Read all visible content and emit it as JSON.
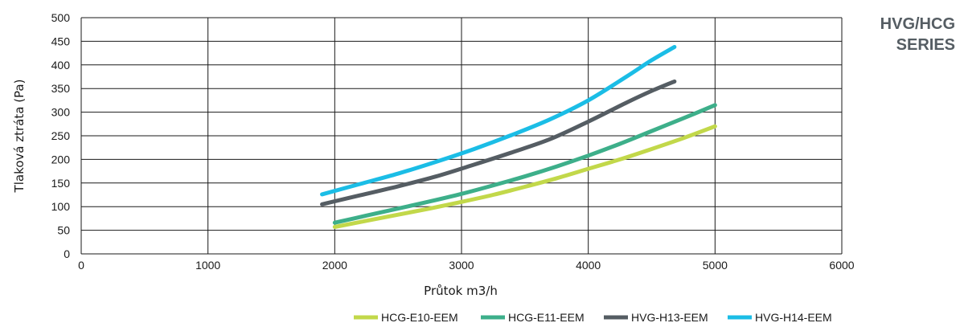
{
  "header": {
    "title_line1": "HVG/HCG",
    "title_line2": "SERIES"
  },
  "chart_data": {
    "type": "line",
    "title": "",
    "xlabel": "Průtok m3/h",
    "ylabel": "Tlaková ztráta (Pa)",
    "xlim": [
      0,
      6000
    ],
    "ylim": [
      0,
      500
    ],
    "x_ticks": [
      0,
      1000,
      2000,
      3000,
      4000,
      5000,
      6000
    ],
    "y_ticks": [
      0,
      50,
      100,
      150,
      200,
      250,
      300,
      350,
      400,
      450,
      500
    ],
    "grid": true,
    "legend_position": "bottom",
    "series": [
      {
        "name": "HCG-E10-EEM",
        "color": "#c2d84a",
        "x": [
          2000,
          2250,
          2500,
          2750,
          3000,
          3250,
          3500,
          3750,
          4000,
          4250,
          4500,
          4750,
          5000
        ],
        "y": [
          57,
          70,
          83,
          96,
          110,
          125,
          142,
          160,
          180,
          200,
          222,
          245,
          270
        ]
      },
      {
        "name": "HCG-E11-EEM",
        "color": "#3daf8a",
        "x": [
          2000,
          2250,
          2500,
          2750,
          3000,
          3250,
          3500,
          3750,
          4000,
          4250,
          4500,
          4750,
          5000
        ],
        "y": [
          66,
          81,
          96,
          111,
          127,
          145,
          164,
          185,
          208,
          233,
          260,
          287,
          315
        ]
      },
      {
        "name": "HVG-H13-EEM",
        "color": "#555d63",
        "x": [
          1900,
          2200,
          2500,
          2800,
          3100,
          3400,
          3700,
          4000,
          4300,
          4500,
          4680
        ],
        "y": [
          105,
          124,
          143,
          164,
          189,
          215,
          243,
          280,
          320,
          345,
          365
        ]
      },
      {
        "name": "HVG-H14-EEM",
        "color": "#1bbde6",
        "x": [
          1900,
          2200,
          2500,
          2800,
          3100,
          3400,
          3700,
          4000,
          4300,
          4500,
          4680
        ],
        "y": [
          126,
          148,
          170,
          195,
          222,
          252,
          285,
          325,
          375,
          410,
          438
        ]
      }
    ]
  }
}
